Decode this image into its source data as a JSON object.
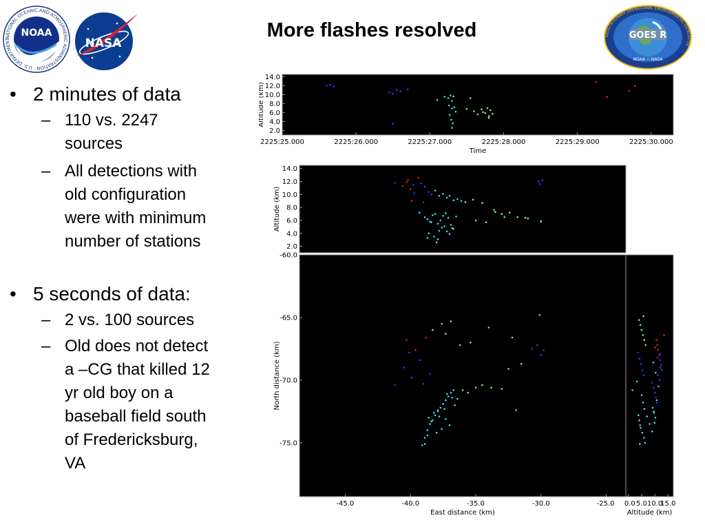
{
  "slide": {
    "title": "More flashes resolved",
    "logo_noaa_text": "NOAA",
    "logo_noaa_ring": "NATIONAL OCEANIC AND ATMOSPHERIC ADMINISTRATION · U.S. DEPARTMENT OF COMMERCE",
    "logo_nasa_text": "NASA",
    "logo_goes_text": "GOES R",
    "logo_goes_sub": "NOAA ~ NASA",
    "logo_goes_ring": "GEOSTATIONARY OPERATIONAL ENVIRONMENTAL SATELLITES"
  },
  "bullets": [
    {
      "text": "2 minutes of data",
      "subs": [
        "110 vs. 2247 sources",
        "All detections with old configuration were with minimum number of stations"
      ]
    },
    {
      "text": "5 seconds of data:",
      "subs": [
        "2 vs. 100 sources",
        "Old does not detect a –CG that killed 12 yr old boy on a baseball field south of Fredericksburg, VA"
      ]
    }
  ],
  "bullet_lines": {
    "b0": "2 minutes of data",
    "b0s0": [
      "110 vs. 2247",
      "sources"
    ],
    "b0s1": [
      "All detections with",
      "old configuration",
      "were with minimum",
      "number of stations"
    ],
    "b1": "5 seconds of data:",
    "b1s0": [
      "2 vs. 100 sources"
    ],
    "b1s1": [
      "Old does not detect",
      "a –CG that killed 12",
      "yr old boy on a",
      "baseball field south",
      "of Fredericksburg,",
      "VA"
    ]
  },
  "colors": {
    "panel_bg": "#000000",
    "red": "#e0201c",
    "blue": "#2c3cf0",
    "cyan": "#40e0e0",
    "green": "#80f080"
  },
  "chart_data": [
    {
      "type": "scatter",
      "title": "",
      "xlabel": "Time",
      "ylabel": "Altitude (km)",
      "xlim": [
        2225.0,
        2230.3
      ],
      "ylim": [
        1.0,
        14.5
      ],
      "xticks": [
        "2225:25.000",
        "2225:26.000",
        "2225:27.000",
        "2225:28.000",
        "2225:29.000",
        "2225:30.000"
      ],
      "yticks": [
        "2.0",
        "4.0",
        "6.0",
        "8.0",
        "10.0",
        "12.0",
        "14.0"
      ],
      "x": [
        2225.6,
        2225.65,
        2225.7,
        2226.45,
        2226.5,
        2226.55,
        2226.6,
        2226.5,
        2226.7,
        2227.1,
        2227.2,
        2227.25,
        2227.28,
        2227.3,
        2227.32,
        2227.26,
        2227.3,
        2227.35,
        2227.27,
        2227.29,
        2227.31,
        2227.3,
        2227.33,
        2227.5,
        2227.6,
        2227.7,
        2227.75,
        2227.8,
        2227.82,
        2227.85,
        2227.78,
        2227.72,
        2227.65,
        2227.55,
        2227.8,
        2229.25,
        2229.4,
        2229.7,
        2229.78
      ],
      "y": [
        12.0,
        12.2,
        11.8,
        10.5,
        10.2,
        11.0,
        10.7,
        3.5,
        11.2,
        8.8,
        9.5,
        9.2,
        9.8,
        8.6,
        9.6,
        7.6,
        6.9,
        6.2,
        5.5,
        4.4,
        3.6,
        2.6,
        7.2,
        6.8,
        6.3,
        6.7,
        5.9,
        5.2,
        6.5,
        5.7,
        7.0,
        6.1,
        5.6,
        9.2,
        4.8,
        12.8,
        9.5,
        10.8,
        11.9
      ],
      "colors": [
        "blue",
        "blue",
        "blue",
        "blue",
        "blue",
        "blue",
        "blue",
        "blue",
        "blue",
        "cyan",
        "cyan",
        "cyan",
        "cyan",
        "cyan",
        "cyan",
        "cyan",
        "cyan",
        "cyan",
        "cyan",
        "cyan",
        "cyan",
        "cyan",
        "cyan",
        "green",
        "green",
        "green",
        "green",
        "green",
        "green",
        "green",
        "green",
        "green",
        "green",
        "green",
        "green",
        "red",
        "red",
        "red",
        "red"
      ]
    },
    {
      "type": "scatter",
      "title": "",
      "xlabel": "",
      "ylabel": "Altitude (km)",
      "xlim": [
        -48.5,
        -23.5
      ],
      "ylim": [
        1.0,
        14.5
      ],
      "yticks": [
        "2.0",
        "4.0",
        "6.0",
        "8.0",
        "10.0",
        "12.0",
        "14.0"
      ],
      "x": [
        -41.2,
        -40.6,
        -40.3,
        -40.0,
        -39.8,
        -39.7,
        -40.2,
        -39.9,
        -39.4,
        -39.2,
        -38.9,
        -38.6,
        -38.4,
        -38.1,
        -37.8,
        -37.5,
        -37.2,
        -37.0,
        -36.7,
        -36.4,
        -36.1,
        -35.8,
        -35.2,
        -34.5,
        -33.6,
        -33.0,
        -32.4,
        -31.8,
        -31.0,
        -30.2,
        -30.1,
        -29.9,
        -30.0,
        -39.3,
        -38.9,
        -38.7,
        -38.5,
        -38.3,
        -38.1,
        -37.9,
        -37.7,
        -37.5,
        -37.3,
        -37.1,
        -36.9,
        -36.7,
        -36.5,
        -38.6,
        -38.2,
        -37.8,
        -37.6,
        -37.4,
        -37.9,
        -38.0,
        -37.2,
        -36.8,
        -37.0,
        -38.4,
        -38.7,
        -35.0,
        -34.2,
        -33.5,
        -32.8,
        -31.2,
        -30.0,
        -39.0
      ],
      "y": [
        11.8,
        11.3,
        11.9,
        10.8,
        11.5,
        10.2,
        12.2,
        9.0,
        12.6,
        11.7,
        11.2,
        10.4,
        10.0,
        10.6,
        9.8,
        10.1,
        9.5,
        9.8,
        9.1,
        9.3,
        9.0,
        8.8,
        9.2,
        8.7,
        7.6,
        7.0,
        7.2,
        6.5,
        6.3,
        12.0,
        11.6,
        12.2,
        5.8,
        7.2,
        6.5,
        6.2,
        5.8,
        6.8,
        7.0,
        5.5,
        6.0,
        6.7,
        7.1,
        6.4,
        5.3,
        4.7,
        6.6,
        4.0,
        3.5,
        4.4,
        4.9,
        5.1,
        3.1,
        2.6,
        4.3,
        4.8,
        3.9,
        5.7,
        3.3,
        6.0,
        5.7,
        7.3,
        6.5,
        6.4,
        5.9,
        8.8
      ],
      "colors": [
        "blue",
        "red",
        "red",
        "red",
        "blue",
        "blue",
        "red",
        "red",
        "red",
        "blue",
        "blue",
        "blue",
        "blue",
        "cyan",
        "cyan",
        "cyan",
        "cyan",
        "cyan",
        "cyan",
        "cyan",
        "cyan",
        "green",
        "green",
        "green",
        "green",
        "green",
        "green",
        "green",
        "green",
        "blue",
        "blue",
        "blue",
        "green",
        "cyan",
        "cyan",
        "cyan",
        "cyan",
        "cyan",
        "cyan",
        "cyan",
        "cyan",
        "cyan",
        "cyan",
        "cyan",
        "cyan",
        "cyan",
        "cyan",
        "cyan",
        "cyan",
        "cyan",
        "cyan",
        "cyan",
        "cyan",
        "cyan",
        "cyan",
        "cyan",
        "cyan",
        "cyan",
        "cyan",
        "green",
        "green",
        "green",
        "green",
        "green",
        "green",
        "blue"
      ]
    },
    {
      "type": "scatter",
      "title": "",
      "xlabel": "East distance (km)",
      "ylabel": "North distance (km)",
      "xlim": [
        -48.5,
        -23.5
      ],
      "ylim": [
        -79.3,
        -60.0
      ],
      "xticks": [
        "-45.0",
        "-40.0",
        "-35.0",
        "-30.0",
        "-25.0"
      ],
      "yticks": [
        "-60.0",
        "-65.0",
        "-70.0",
        "-75.0"
      ],
      "x": [
        -39.1,
        -38.9,
        -38.7,
        -38.5,
        -38.3,
        -38.1,
        -37.9,
        -37.7,
        -37.5,
        -37.3,
        -37.1,
        -36.9,
        -36.7,
        -38.6,
        -38.2,
        -37.8,
        -37.4,
        -37.0,
        -36.6,
        -36.4,
        -38.0,
        -37.6,
        -37.2,
        -38.4,
        -37.9,
        -37.3,
        -36.8,
        -38.9,
        -38.7,
        -36.0,
        -35.6,
        -35.0,
        -34.5,
        -33.8,
        -33.0,
        -32.5,
        -38.3,
        -37.6,
        -37.3,
        -36.9,
        -36.2,
        -35.4,
        -34.0,
        -32.2,
        -31.5,
        -30.1,
        -41.2,
        -40.1,
        -39.3,
        -40.3,
        -39.9,
        -40.5,
        -39.6,
        -39.0,
        -38.5,
        -30.0,
        -29.8,
        -30.3,
        -38.8,
        -31.9,
        -30.7
      ],
      "y": [
        -75.2,
        -74.6,
        -74.0,
        -73.5,
        -73.2,
        -72.8,
        -72.5,
        -72.2,
        -71.9,
        -71.6,
        -71.3,
        -71.0,
        -70.8,
        -73.0,
        -72.6,
        -72.9,
        -72.3,
        -73.6,
        -72.0,
        -71.5,
        -74.2,
        -73.9,
        -71.1,
        -73.3,
        -72.4,
        -73.1,
        -71.4,
        -75.1,
        -74.4,
        -70.8,
        -71.0,
        -70.6,
        -70.4,
        -70.6,
        -70.7,
        -69.1,
        -66.0,
        -65.5,
        -66.3,
        -65.3,
        -67.2,
        -67.0,
        -65.8,
        -66.6,
        -68.7,
        -64.8,
        -70.4,
        -67.8,
        -68.4,
        -66.8,
        -69.8,
        -69.0,
        -67.6,
        -70.3,
        -69.5,
        -68.0,
        -67.6,
        -67.2,
        -66.6,
        -72.4,
        -67.5
      ],
      "colors": [
        "cyan",
        "cyan",
        "cyan",
        "cyan",
        "cyan",
        "cyan",
        "cyan",
        "cyan",
        "cyan",
        "cyan",
        "cyan",
        "cyan",
        "cyan",
        "cyan",
        "cyan",
        "cyan",
        "cyan",
        "cyan",
        "cyan",
        "cyan",
        "cyan",
        "cyan",
        "cyan",
        "cyan",
        "cyan",
        "cyan",
        "cyan",
        "cyan",
        "cyan",
        "green",
        "green",
        "green",
        "green",
        "green",
        "green",
        "green",
        "green",
        "green",
        "green",
        "green",
        "green",
        "green",
        "green",
        "green",
        "green",
        "green",
        "blue",
        "blue",
        "blue",
        "red",
        "blue",
        "blue",
        "red",
        "blue",
        "blue",
        "blue",
        "blue",
        "blue",
        "red",
        "green",
        "blue"
      ]
    },
    {
      "type": "scatter",
      "title": "",
      "xlabel": "Altitude (km)",
      "ylabel": "",
      "xlim": [
        -1.0,
        17.0
      ],
      "ylim": [
        -79.3,
        -60.0
      ],
      "xticks": [
        "0.0",
        "5.0",
        "10.0",
        "15.0"
      ],
      "x": [
        4.0,
        4.5,
        5.0,
        5.5,
        6.0,
        6.5,
        3.5,
        4.2,
        4.8,
        5.3,
        5.8,
        9.0,
        9.5,
        10.0,
        10.4,
        10.8,
        9.2,
        9.7,
        10.2,
        9.9,
        4.6,
        5.2,
        5.9,
        6.3,
        3.8,
        4.1,
        4.4,
        10.6,
        10.9,
        11.2,
        11.6,
        11.9,
        12.3,
        12.6,
        11.1,
        11.8,
        13.5,
        12.0,
        9.4,
        10.3,
        3.2,
        1.5,
        5.0,
        5.5,
        6.0,
        7.0,
        8.0,
        9.0,
        4.3,
        5.7,
        10.0,
        11.0,
        12.1,
        11.4,
        10.7,
        9.6
      ],
      "y": [
        -65.2,
        -65.6,
        -66.0,
        -66.4,
        -66.8,
        -67.2,
        -67.8,
        -68.3,
        -68.7,
        -69.2,
        -69.6,
        -70.2,
        -70.6,
        -71.0,
        -71.4,
        -71.8,
        -72.2,
        -72.6,
        -73.0,
        -73.4,
        -73.8,
        -74.2,
        -74.6,
        -75.0,
        -72.8,
        -73.2,
        -73.6,
        -66.8,
        -67.2,
        -67.6,
        -68.0,
        -68.4,
        -68.8,
        -69.2,
        -69.6,
        -70.0,
        -66.4,
        -67.9,
        -68.6,
        -69.4,
        -70.1,
        -70.8,
        -71.2,
        -71.8,
        -72.3,
        -72.9,
        -73.5,
        -74.1,
        -75.1,
        -64.9,
        -67.4,
        -68.2,
        -69.0,
        -70.5,
        -71.6,
        -72.5
      ],
      "colors": [
        "green",
        "green",
        "green",
        "green",
        "green",
        "green",
        "blue",
        "blue",
        "blue",
        "blue",
        "blue",
        "blue",
        "blue",
        "blue",
        "blue",
        "blue",
        "cyan",
        "cyan",
        "cyan",
        "cyan",
        "cyan",
        "cyan",
        "cyan",
        "cyan",
        "cyan",
        "cyan",
        "cyan",
        "red",
        "red",
        "red",
        "red",
        "blue",
        "blue",
        "blue",
        "blue",
        "blue",
        "red",
        "blue",
        "cyan",
        "cyan",
        "cyan",
        "cyan",
        "cyan",
        "cyan",
        "cyan",
        "cyan",
        "cyan",
        "cyan",
        "cyan",
        "green",
        "red",
        "blue",
        "blue",
        "cyan",
        "cyan",
        "cyan"
      ]
    }
  ]
}
